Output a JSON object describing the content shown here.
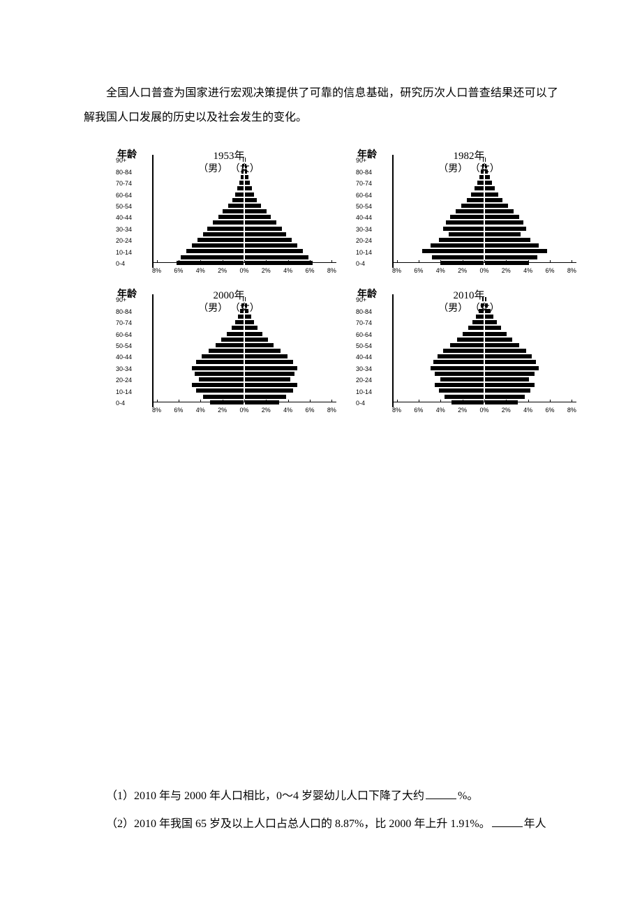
{
  "intro": "全国人口普查为国家进行宏观决策提供了可靠的信息基础，研究历次人口普查结果还可以了解我国人口发展的历史以及社会发生的变化。",
  "age_title": "年龄",
  "gender_label": "（男）   （女）",
  "age_groups": [
    "90+",
    "80-84",
    "70-74",
    "60-64",
    "50-54",
    "40-44",
    "30-34",
    "20-24",
    "10-14",
    "0-4"
  ],
  "x_ticks": [
    "8%",
    "6%",
    "4%",
    "2%",
    "0%",
    "2%",
    "4%",
    "6%",
    "8%"
  ],
  "pyramids": [
    {
      "year": "1953年",
      "male": [
        1,
        2,
        3,
        4,
        6,
        9,
        12,
        16,
        22,
        30,
        36,
        44,
        52,
        58,
        66,
        74,
        82,
        90,
        96
      ],
      "female": [
        1,
        2,
        3,
        5,
        7,
        10,
        13,
        17,
        23,
        31,
        37,
        45,
        53,
        59,
        67,
        75,
        83,
        91,
        97
      ]
    },
    {
      "year": "1982年",
      "male": [
        1,
        2,
        4,
        6,
        9,
        13,
        18,
        24,
        32,
        40,
        48,
        54,
        58,
        50,
        64,
        76,
        88,
        74,
        62
      ],
      "female": [
        1,
        2,
        4,
        7,
        10,
        14,
        19,
        25,
        33,
        41,
        49,
        55,
        59,
        51,
        65,
        77,
        89,
        75,
        63
      ]
    },
    {
      "year": "2000年",
      "male": [
        1,
        3,
        5,
        8,
        12,
        17,
        24,
        32,
        40,
        50,
        60,
        68,
        74,
        70,
        64,
        74,
        68,
        58,
        48
      ],
      "female": [
        1,
        3,
        5,
        9,
        13,
        18,
        25,
        33,
        41,
        51,
        61,
        69,
        75,
        71,
        65,
        75,
        69,
        59,
        49
      ]
    },
    {
      "year": "2010年",
      "male": [
        2,
        4,
        7,
        11,
        16,
        22,
        30,
        38,
        48,
        58,
        66,
        72,
        76,
        70,
        62,
        70,
        64,
        56,
        46
      ],
      "female": [
        2,
        4,
        8,
        12,
        17,
        23,
        31,
        39,
        49,
        59,
        67,
        73,
        77,
        71,
        63,
        71,
        65,
        57,
        47
      ]
    }
  ],
  "questions": {
    "q1_prefix": "（1）2010 年与 2000 年人口相比，0～4 岁婴幼儿人口下降了大约",
    "q1_suffix": "%。",
    "q2_prefix": "（2）2010 年我国 65 岁及以上人口占总人口的 8.87%，比 2000 年上升 1.91%。",
    "q2_suffix": "年人"
  }
}
